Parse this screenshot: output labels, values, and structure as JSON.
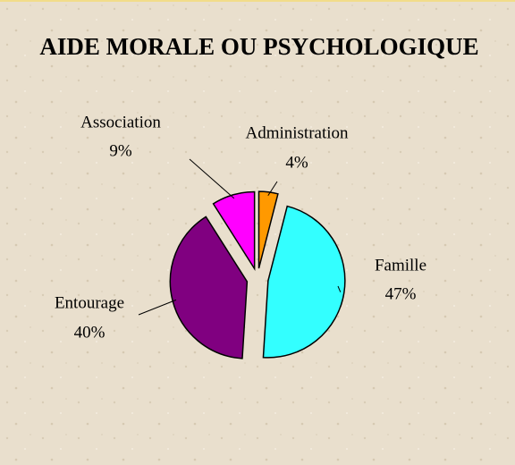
{
  "chart_data": {
    "type": "pie",
    "title": "AIDE MORALE OU PSYCHOLOGIQUE",
    "categories": [
      "Administration",
      "Famille",
      "Entourage",
      "Association"
    ],
    "values": [
      4,
      47,
      40,
      9
    ],
    "value_labels": [
      "4%",
      "47%",
      "40%",
      "9%"
    ],
    "colors": [
      "#ff9900",
      "#33ffff",
      "#800080",
      "#ff00ff"
    ]
  }
}
